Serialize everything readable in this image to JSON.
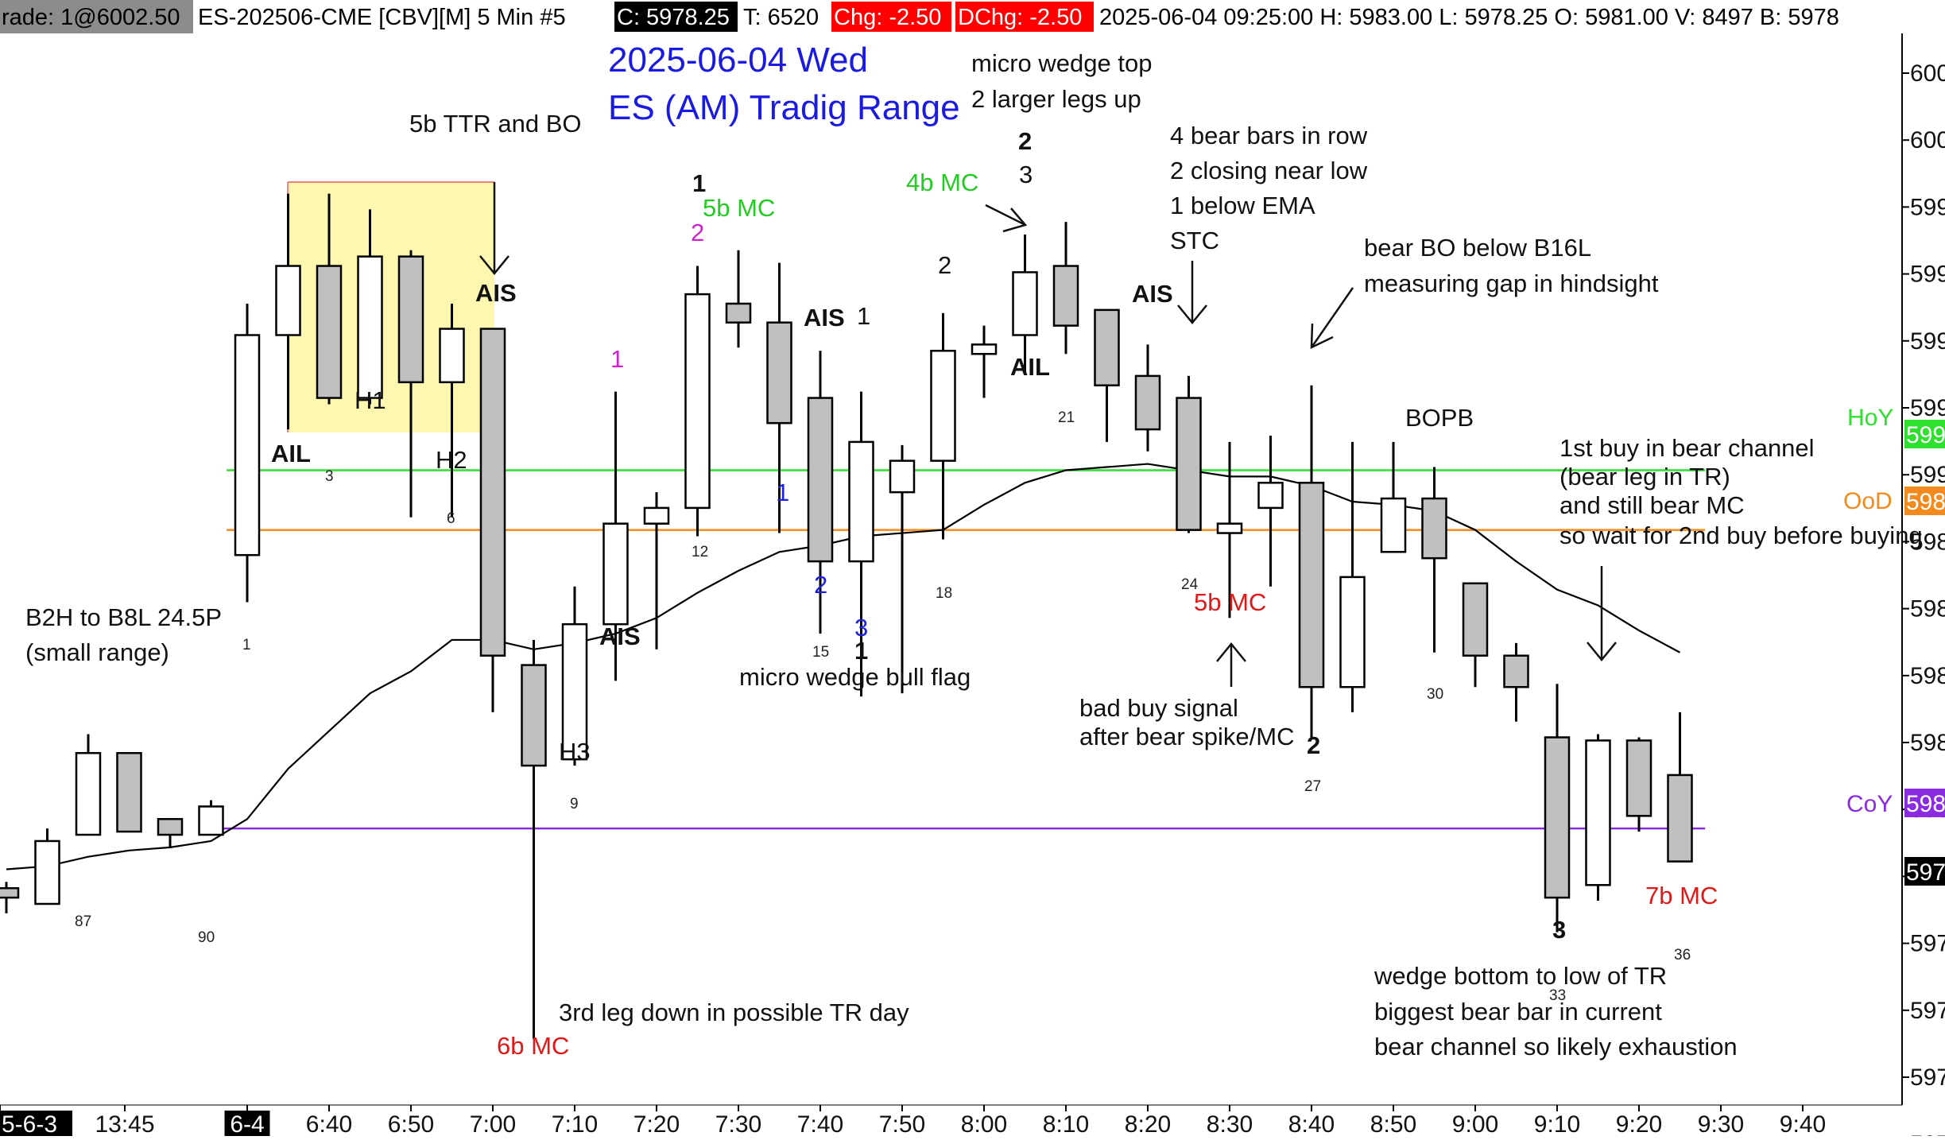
{
  "header": {
    "trade": "rade: 1@6002.50",
    "symbol": "ES-202506-CME [CBV][M]  5 Min  #5",
    "close": "C: 5978.25",
    "ticks": "T: 6520",
    "chg": "Chg: -2.50",
    "dchg": "DChg: -2.50",
    "stats": "2025-06-04 09:25:00 H: 5983.00 L: 5978.25 O: 5981.00 V: 8497 B: 5978"
  },
  "colors": {
    "bull_fill": "#ffffff",
    "bear_fill": "#c0c0c0",
    "candle_outline": "#000000",
    "ema": "#000000",
    "hoy": "#2fe02f",
    "ood": "#f28a1e",
    "coy": "#8a2be2",
    "range_box": "#fdf7b0",
    "chg_bg": "#ff0000",
    "close_bg": "#000000"
  },
  "chart_data": {
    "type": "candlestick",
    "title": "2025-06-04 Wed",
    "subtitle": "ES (AM) Tradig Range",
    "x_tick_labels": [
      "5-6-3",
      "13:45",
      "6-4",
      "6:40",
      "6:50",
      "7:00",
      "7:10",
      "7:20",
      "7:30",
      "7:40",
      "7:50",
      "8:00",
      "8:10",
      "8:20",
      "8:30",
      "8:40",
      "8:50",
      "9:00",
      "9:10",
      "9:20",
      "9:30",
      "9:40"
    ],
    "y_tick_labels": [
      "600",
      "600",
      "599",
      "599",
      "599",
      "599",
      "599",
      "598",
      "598",
      "598",
      "598",
      "598",
      "597",
      "597",
      "597",
      "597",
      "597"
    ],
    "y_axis_price_range": [
      5970.5,
      6004.6
    ],
    "candles": [
      {
        "t": "13:35",
        "o": 5977.4,
        "h": 5977.6,
        "l": 5976.6,
        "c": 5977.1
      },
      {
        "t": "13:40",
        "o": 5976.9,
        "h": 5979.3,
        "l": 5976.9,
        "c": 5978.9
      },
      {
        "t": "13:45",
        "o": 5979.1,
        "h": 5982.3,
        "l": 5979.1,
        "c": 5981.7
      },
      {
        "t": "13:50",
        "o": 5981.7,
        "h": 5981.7,
        "l": 5979.2,
        "c": 5979.2
      },
      {
        "t": "13:55",
        "o": 5979.6,
        "h": 5979.6,
        "l": 5978.7,
        "c": 5979.1
      },
      {
        "t": "14:00",
        "o": 5979.1,
        "h": 5980.2,
        "l": 5979.1,
        "c": 5980.0
      },
      {
        "t": "6:30",
        "o": 5988.0,
        "h": 5996.0,
        "l": 5986.5,
        "c": 5995.0
      },
      {
        "t": "6:35",
        "o": 5995.0,
        "h": 5999.5,
        "l": 5992.0,
        "c": 5997.2
      },
      {
        "t": "6:40",
        "o": 5997.2,
        "h": 5999.5,
        "l": 5992.8,
        "c": 5993.0
      },
      {
        "t": "6:45",
        "o": 5993.0,
        "h": 5999.0,
        "l": 5992.8,
        "c": 5997.5
      },
      {
        "t": "6:50",
        "o": 5997.5,
        "h": 5997.7,
        "l": 5989.2,
        "c": 5993.5
      },
      {
        "t": "6:55",
        "o": 5993.5,
        "h": 5996.0,
        "l": 5989.2,
        "c": 5995.2
      },
      {
        "t": "7:00",
        "o": 5995.2,
        "h": 5995.2,
        "l": 5983.0,
        "c": 5984.8
      },
      {
        "t": "7:05",
        "o": 5984.5,
        "h": 5985.3,
        "l": 5972.6,
        "c": 5981.3
      },
      {
        "t": "7:10",
        "o": 5981.5,
        "h": 5987.0,
        "l": 5981.3,
        "c": 5985.8
      },
      {
        "t": "7:15",
        "o": 5985.8,
        "h": 5993.2,
        "l": 5984.0,
        "c": 5989.0
      },
      {
        "t": "7:20",
        "o": 5989.0,
        "h": 5990.0,
        "l": 5985.0,
        "c": 5989.5
      },
      {
        "t": "7:25",
        "o": 5989.5,
        "h": 5997.2,
        "l": 5988.6,
        "c": 5996.3
      },
      {
        "t": "7:30",
        "o": 5996.0,
        "h": 5997.7,
        "l": 5994.6,
        "c": 5995.4
      },
      {
        "t": "7:35",
        "o": 5995.4,
        "h": 5997.3,
        "l": 5988.7,
        "c": 5992.2
      },
      {
        "t": "7:40",
        "o": 5993.0,
        "h": 5994.5,
        "l": 5985.5,
        "c": 5987.8
      },
      {
        "t": "7:45",
        "o": 5987.8,
        "h": 5993.2,
        "l": 5983.5,
        "c": 5991.6
      },
      {
        "t": "7:50",
        "o": 5990.0,
        "h": 5991.5,
        "l": 5983.6,
        "c": 5991.0
      },
      {
        "t": "7:55",
        "o": 5991.0,
        "h": 5995.7,
        "l": 5988.5,
        "c": 5994.5
      },
      {
        "t": "8:00",
        "o": 5994.4,
        "h": 5995.3,
        "l": 5993.0,
        "c": 5994.7
      },
      {
        "t": "8:05",
        "o": 5995.0,
        "h": 5998.2,
        "l": 5993.8,
        "c": 5997.0
      },
      {
        "t": "8:10",
        "o": 5997.2,
        "h": 5998.6,
        "l": 5994.4,
        "c": 5995.3
      },
      {
        "t": "8:15",
        "o": 5995.8,
        "h": 5995.8,
        "l": 5991.6,
        "c": 5993.4
      },
      {
        "t": "8:20",
        "o": 5993.7,
        "h": 5994.7,
        "l": 5991.3,
        "c": 5992.0
      },
      {
        "t": "8:25",
        "o": 5993.0,
        "h": 5993.7,
        "l": 5988.7,
        "c": 5988.8
      },
      {
        "t": "8:30",
        "o": 5988.7,
        "h": 5991.6,
        "l": 5986.0,
        "c": 5989.0
      },
      {
        "t": "8:35",
        "o": 5989.5,
        "h": 5991.8,
        "l": 5987.0,
        "c": 5990.3
      },
      {
        "t": "8:40",
        "o": 5990.3,
        "h": 5993.4,
        "l": 5982.2,
        "c": 5983.8
      },
      {
        "t": "8:45",
        "o": 5983.8,
        "h": 5991.6,
        "l": 5983.0,
        "c": 5987.3
      },
      {
        "t": "8:50",
        "o": 5988.1,
        "h": 5991.6,
        "l": 5988.1,
        "c": 5989.8
      },
      {
        "t": "8:55",
        "o": 5989.8,
        "h": 5990.8,
        "l": 5984.9,
        "c": 5987.9
      },
      {
        "t": "9:00",
        "o": 5987.1,
        "h": 5987.1,
        "l": 5983.8,
        "c": 5984.8
      },
      {
        "t": "9:05",
        "o": 5984.8,
        "h": 5985.2,
        "l": 5982.7,
        "c": 5983.8
      },
      {
        "t": "9:10",
        "o": 5982.2,
        "h": 5983.9,
        "l": 5976.0,
        "c": 5977.1
      },
      {
        "t": "9:15",
        "o": 5977.5,
        "h": 5982.3,
        "l": 5977.0,
        "c": 5982.1
      },
      {
        "t": "9:20",
        "o": 5982.1,
        "h": 5982.2,
        "l": 5979.2,
        "c": 5979.7
      },
      {
        "t": "9:25",
        "o": 5981.0,
        "h": 5983.0,
        "l": 5978.25,
        "c": 5978.25
      }
    ],
    "ema": [
      5978.0,
      5978.1,
      5978.4,
      5978.6,
      5978.7,
      5978.9,
      5979.6,
      5981.2,
      5982.4,
      5983.6,
      5984.3,
      5985.3,
      5985.3,
      5985.0,
      5985.2,
      5985.5,
      5986.0,
      5986.8,
      5987.5,
      5988.1,
      5988.3,
      5988.6,
      5988.7,
      5988.8,
      5989.6,
      5990.3,
      5990.7,
      5990.8,
      5990.9,
      5990.7,
      5990.5,
      5990.5,
      5990.2,
      5989.7,
      5989.6,
      5989.4,
      5988.8,
      5987.8,
      5986.9,
      5986.4,
      5985.6,
      5984.9
    ]
  },
  "levels": [
    {
      "name": "HoY",
      "price": 5990.7,
      "tag": "599"
    },
    {
      "name": "OoD",
      "price": 5988.8,
      "tag": "598"
    },
    {
      "name": "CoY",
      "price": 5979.3,
      "tag": "598"
    }
  ],
  "last_price_tag": "597",
  "annotations": {
    "5b_ttr": "5b TTR and BO",
    "micro_wedge_top_1": "micro wedge top",
    "micro_wedge_top_2": "2 larger legs up",
    "four_bear_1": "4 bear bars in row",
    "four_bear_2": "2 closing near low",
    "four_bear_3": "1 below EMA",
    "four_bear_4": "STC",
    "bear_bo_1": "bear BO below B16L",
    "bear_bo_2": "measuring gap in hindsight",
    "bopb": "BOPB",
    "first_buy_1": "1st buy in bear channel",
    "first_buy_2": "(bear leg in TR)",
    "first_buy_3": "and still bear MC",
    "first_buy_4": "so wait for 2nd buy before buying",
    "b2h_1": "B2H to B8L 24.5P",
    "b2h_2": "(small range)",
    "micro_wedge_flag": "micro wedge bull flag",
    "bad_buy_1": "bad buy signal",
    "bad_buy_2": "after bear spike/MC",
    "third_leg": "3rd leg down in possible TR day",
    "wedge_bottom_1": "wedge bottom to low of TR",
    "wedge_bottom_2": "biggest bear bar in current",
    "wedge_bottom_3": "bear channel so likely exhaustion",
    "mc_5b_top": "5b MC",
    "mc_4b": "4b MC",
    "mc_5b_bot": "5b MC",
    "mc_6b": "6b MC",
    "mc_7b": "7b MC",
    "h1": "H1",
    "h2": "H2",
    "h3": "H3",
    "ail1": "AIL",
    "ail2": "AIL",
    "ais1": "AIS",
    "ais2": "AIS",
    "ais3": "AIS",
    "ais4": "AIS",
    "lbl_1a": "1",
    "lbl_1m": "1",
    "lbl_2m": "2",
    "lbl_1_740": "1",
    "lbl_2_740": "2",
    "lbl_1_745a": "1",
    "lbl_3_745": "3",
    "lbl_1_745b": "1",
    "lbl_2_755": "2",
    "lbl_2_805": "2",
    "lbl_3_805": "3",
    "lbl_2_840": "2",
    "lbl_3_910": "3",
    "lbl_1_715": "1"
  },
  "bar_counts": [
    "1",
    "3",
    "6",
    "9",
    "12",
    "15",
    "18",
    "21",
    "24",
    "27",
    "30",
    "33",
    "36",
    "87",
    "90"
  ]
}
